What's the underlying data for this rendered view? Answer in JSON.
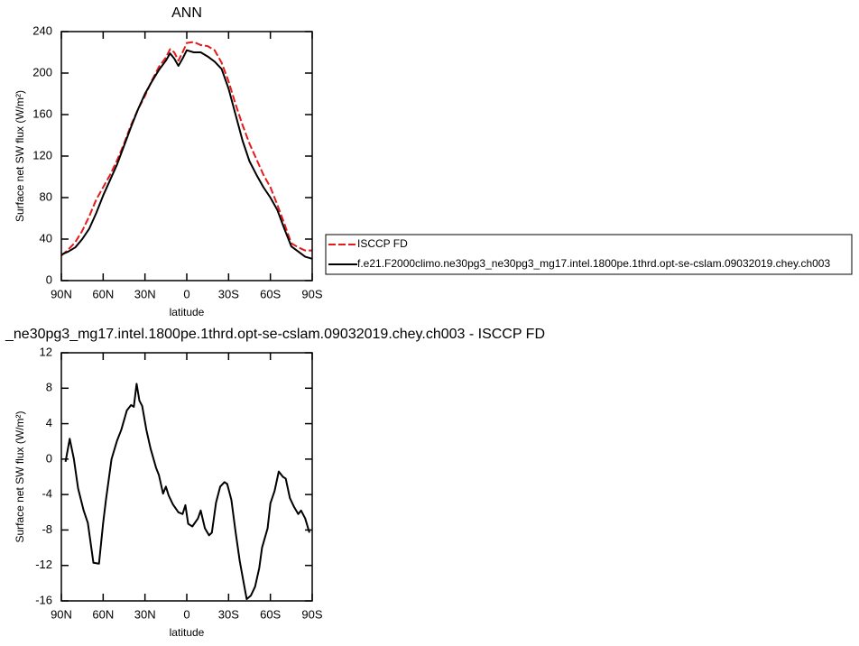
{
  "chart_data": [
    {
      "type": "line",
      "title": "ANN",
      "ylabel": "Surface net SW flux (W/m²)",
      "xlabel": "latitude",
      "x": [
        90,
        85,
        80,
        75,
        70,
        65,
        60,
        55,
        50,
        45,
        40,
        35,
        30,
        25,
        20,
        15,
        12,
        9,
        6,
        3,
        0,
        -5,
        -10,
        -15,
        -20,
        -25,
        -30,
        -35,
        -40,
        -45,
        -50,
        -55,
        -60,
        -65,
        -70,
        -75,
        -80,
        -85,
        -90
      ],
      "series": [
        {
          "name": "ISCCP FD",
          "color": "#e41a1c",
          "dashed": true,
          "values": [
            24,
            30,
            37,
            48,
            62,
            78,
            90,
            102,
            116,
            132,
            150,
            165,
            178,
            193,
            206,
            215,
            223,
            220,
            212,
            220,
            229,
            230,
            227,
            226,
            222,
            210,
            192,
            170,
            150,
            132,
            117,
            102,
            90,
            73,
            55,
            36,
            32,
            29,
            29
          ]
        },
        {
          "name": "f.e21.F2000climo.ne30pg3_ne30pg3_mg17.intel.1800pe.1thrd.opt-se-cslam.09032019.chey.ch003",
          "color": "#000000",
          "dashed": false,
          "values": [
            25,
            28,
            32,
            40,
            50,
            65,
            82,
            97,
            112,
            130,
            148,
            165,
            180,
            192,
            203,
            212,
            219,
            214,
            207,
            214,
            222,
            220,
            220,
            216,
            211,
            204,
            185,
            160,
            135,
            115,
            102,
            90,
            80,
            68,
            50,
            33,
            28,
            23,
            21
          ]
        }
      ],
      "xlim": [
        90,
        -90
      ],
      "xticks": [
        {
          "value": 90,
          "label": "90N"
        },
        {
          "value": 60,
          "label": "60N"
        },
        {
          "value": 30,
          "label": "30N"
        },
        0,
        {
          "value": -30,
          "label": "30S"
        },
        {
          "value": -60,
          "label": "60S"
        },
        {
          "value": -90,
          "label": "90S"
        }
      ],
      "ylim": [
        0,
        240
      ],
      "yticks": [
        0,
        40,
        80,
        120,
        160,
        200,
        240
      ],
      "legend": "right"
    },
    {
      "type": "line",
      "title": "_ne30pg3_mg17.intel.1800pe.1thrd.opt-se-cslam.09032019.chey.ch003 - ISCCP FD",
      "ylabel": "Surface net SW flux (W/m²)",
      "xlabel": "latitude",
      "x": [
        87,
        84,
        81,
        78,
        74,
        71,
        67,
        63,
        60,
        58,
        54,
        50,
        47,
        43,
        40,
        38,
        36,
        34,
        32,
        29,
        26,
        22,
        20,
        17,
        15,
        13,
        10,
        6,
        3,
        1,
        -1,
        -4,
        -8,
        -10,
        -13,
        -16,
        -18,
        -21,
        -24,
        -27,
        -29,
        -32,
        -35,
        -38,
        -41,
        -43,
        -46,
        -49,
        -52,
        -54,
        -58,
        -60,
        -63,
        -66,
        -69,
        -71,
        -74,
        -77,
        -80,
        -82,
        -85,
        -88
      ],
      "series": [
        {
          "color": "#000000",
          "dashed": false,
          "values": [
            -0.3,
            2.3,
            0,
            -3.3,
            -5.8,
            -7.2,
            -11.7,
            -11.8,
            -7.2,
            -4.6,
            0,
            2.1,
            3.3,
            5.5,
            6.1,
            5.9,
            8.5,
            6.6,
            6,
            3.3,
            1.2,
            -1,
            -1.8,
            -3.9,
            -3.1,
            -4.1,
            -5.1,
            -6,
            -6.2,
            -5.2,
            -7.3,
            -7.6,
            -6.7,
            -5.8,
            -7.8,
            -8.6,
            -8.3,
            -4.9,
            -3.1,
            -2.6,
            -2.8,
            -4.6,
            -8.2,
            -11.5,
            -14.1,
            -15.8,
            -15.4,
            -14.4,
            -12.3,
            -10,
            -7.8,
            -5,
            -3.6,
            -1.4,
            -2,
            -2.2,
            -4.4,
            -5.4,
            -6.2,
            -5.8,
            -6.7,
            -8.3
          ]
        }
      ],
      "xlim": [
        90,
        -90
      ],
      "xticks": [
        {
          "value": 90,
          "label": "90N"
        },
        {
          "value": 60,
          "label": "60N"
        },
        {
          "value": 30,
          "label": "30N"
        },
        0,
        {
          "value": -30,
          "label": "30S"
        },
        {
          "value": -60,
          "label": "60S"
        },
        {
          "value": -90,
          "label": "90S"
        }
      ],
      "ylim": [
        -16,
        12
      ],
      "yticks": [
        -16,
        -12,
        -8,
        -4,
        0,
        4,
        8,
        12
      ]
    }
  ]
}
